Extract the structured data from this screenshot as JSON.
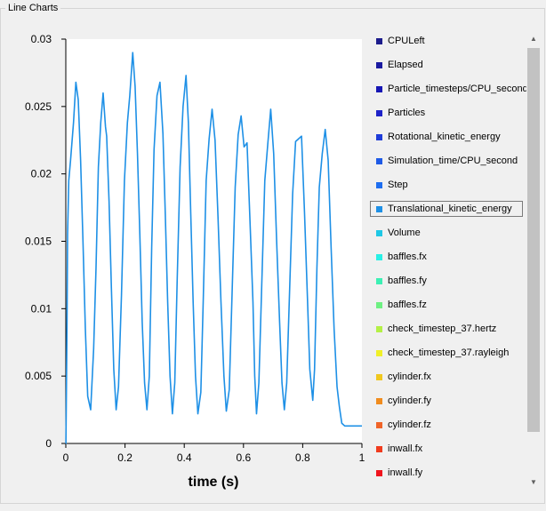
{
  "group_title": "Line Charts",
  "chart_data": {
    "type": "line",
    "title": "",
    "xlabel": "time (s)",
    "ylabel": "",
    "xlim": [
      0,
      1
    ],
    "ylim": [
      0,
      0.03
    ],
    "xticks": [
      0,
      0.2,
      0.4,
      0.6,
      0.8,
      1
    ],
    "xtick_labels": [
      "0",
      "0.2",
      "0.4",
      "0.6",
      "0.8",
      "1"
    ],
    "yticks": [
      0,
      0.005,
      0.01,
      0.015,
      0.02,
      0.025,
      0.03
    ],
    "ytick_labels": [
      "0",
      "0.005",
      "0.01",
      "0.015",
      "0.02",
      "0.025",
      "0.03"
    ],
    "grid": false,
    "legend_position": "right",
    "series": [
      {
        "name": "Translational_kinetic_energy",
        "color": "#1e90e6",
        "x": [
          0,
          0.0004,
          0.004,
          0.006,
          0.01,
          0.016,
          0.026,
          0.034,
          0.042,
          0.05,
          0.058,
          0.066,
          0.074,
          0.084,
          0.094,
          0.102,
          0.11,
          0.118,
          0.126,
          0.134,
          0.138,
          0.146,
          0.154,
          0.162,
          0.17,
          0.178,
          0.188,
          0.198,
          0.208,
          0.216,
          0.226,
          0.234,
          0.242,
          0.25,
          0.258,
          0.266,
          0.274,
          0.282,
          0.29,
          0.298,
          0.308,
          0.318,
          0.328,
          0.336,
          0.344,
          0.352,
          0.36,
          0.368,
          0.376,
          0.386,
          0.396,
          0.406,
          0.414,
          0.422,
          0.43,
          0.438,
          0.446,
          0.456,
          0.464,
          0.474,
          0.484,
          0.494,
          0.504,
          0.514,
          0.524,
          0.534,
          0.542,
          0.552,
          0.562,
          0.572,
          0.582,
          0.592,
          0.602,
          0.612,
          0.622,
          0.632,
          0.638,
          0.644,
          0.652,
          0.662,
          0.672,
          0.682,
          0.692,
          0.702,
          0.712,
          0.722,
          0.73,
          0.738,
          0.746,
          0.756,
          0.766,
          0.776,
          0.786,
          0.796,
          0.806,
          0.816,
          0.824,
          0.834,
          0.84,
          0.848,
          0.856,
          0.866,
          0.876,
          0.886,
          0.896,
          0.906,
          0.916,
          0.924,
          0.932,
          0.942,
          0.952,
          0.962,
          0.972,
          0.982,
          0.99,
          1.0
        ],
        "values": [
          0,
          0,
          0.0085,
          0.0155,
          0.0195,
          0.021,
          0.0238,
          0.0268,
          0.0255,
          0.021,
          0.015,
          0.0085,
          0.0035,
          0.0025,
          0.007,
          0.013,
          0.0205,
          0.0238,
          0.026,
          0.0235,
          0.0228,
          0.018,
          0.0115,
          0.0055,
          0.0025,
          0.0042,
          0.011,
          0.0195,
          0.0238,
          0.0258,
          0.029,
          0.0265,
          0.0215,
          0.0155,
          0.009,
          0.0045,
          0.0025,
          0.005,
          0.0145,
          0.0218,
          0.0258,
          0.0268,
          0.023,
          0.017,
          0.0105,
          0.005,
          0.0022,
          0.0045,
          0.012,
          0.0205,
          0.025,
          0.0273,
          0.0238,
          0.017,
          0.0105,
          0.005,
          0.0022,
          0.0038,
          0.0105,
          0.0195,
          0.0226,
          0.0248,
          0.0225,
          0.0168,
          0.0105,
          0.005,
          0.0024,
          0.004,
          0.0115,
          0.019,
          0.0229,
          0.0243,
          0.022,
          0.0223,
          0.0165,
          0.0105,
          0.005,
          0.0022,
          0.0045,
          0.012,
          0.0195,
          0.0222,
          0.0248,
          0.0215,
          0.015,
          0.009,
          0.0045,
          0.0025,
          0.0045,
          0.0115,
          0.0185,
          0.0224,
          0.0226,
          0.0228,
          0.0172,
          0.0108,
          0.0055,
          0.0032,
          0.0055,
          0.013,
          0.019,
          0.0215,
          0.0233,
          0.021,
          0.0145,
          0.0085,
          0.0042,
          0.0027,
          0.0015,
          0.0013,
          0.0013,
          0.0013,
          0.0013,
          0.0013,
          0.0013,
          0.0013
        ]
      }
    ]
  },
  "legend": {
    "selected_index": 7,
    "items": [
      {
        "label": "CPULeft",
        "color": "#1c1c8c"
      },
      {
        "label": "Elapsed",
        "color": "#1a1aa0"
      },
      {
        "label": "Particle_timesteps/CPU_second",
        "color": "#1616b4"
      },
      {
        "label": "Particles",
        "color": "#1e22c8"
      },
      {
        "label": "Rotational_kinetic_energy",
        "color": "#1e3cd8"
      },
      {
        "label": "Simulation_time/CPU_second",
        "color": "#1e5ae6"
      },
      {
        "label": "Step",
        "color": "#1e6ef0"
      },
      {
        "label": "Translational_kinetic_energy",
        "color": "#1e90e6"
      },
      {
        "label": "Volume",
        "color": "#1ec8e6"
      },
      {
        "label": "baffles.fx",
        "color": "#28f0e6"
      },
      {
        "label": "baffles.fy",
        "color": "#3cf0b4"
      },
      {
        "label": "baffles.fz",
        "color": "#6ef082"
      },
      {
        "label": "check_timestep_37.hertz",
        "color": "#b4f046"
      },
      {
        "label": "check_timestep_37.rayleigh",
        "color": "#f0f028"
      },
      {
        "label": "cylinder.fx",
        "color": "#f0c81e"
      },
      {
        "label": "cylinder.fy",
        "color": "#f08c1e"
      },
      {
        "label": "cylinder.fz",
        "color": "#f06428"
      },
      {
        "label": "inwall.fx",
        "color": "#f03c1e"
      },
      {
        "label": "inwall.fy",
        "color": "#f0141e"
      }
    ]
  },
  "scrollbar": {
    "up_icon": "arrow-up-icon",
    "down_icon": "arrow-down-icon"
  }
}
